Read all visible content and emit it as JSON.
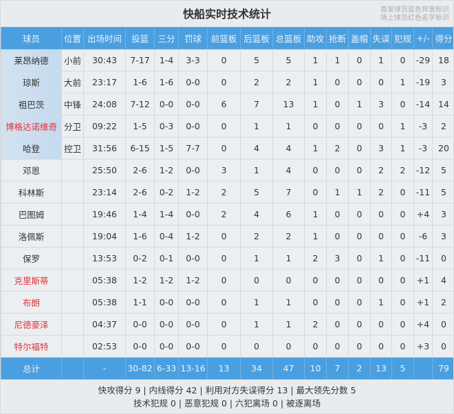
{
  "title": "快船实时技术统计",
  "legend": [
    "首发球员蓝色背景标识",
    "场上球员红色名字标识"
  ],
  "colors": {
    "header": "#4a9fe0",
    "starter_bg": "#c5daef",
    "on_court_name": "#e0343a"
  },
  "columns": [
    "球员",
    "位置",
    "出场时间",
    "投篮",
    "三分",
    "罚球",
    "前篮板",
    "后篮板",
    "总篮板",
    "助攻",
    "抢断",
    "盖帽",
    "失误",
    "犯规",
    "+/-",
    "得分"
  ],
  "players": [
    {
      "cells": [
        "莱昂纳德",
        "小前",
        "30:43",
        "7-17",
        "1-4",
        "3-3",
        "0",
        "5",
        "5",
        "1",
        "1",
        "0",
        "1",
        "0",
        "-29",
        "18"
      ],
      "starter": true,
      "on_court": false
    },
    {
      "cells": [
        "琼斯",
        "大前",
        "23:17",
        "1-6",
        "1-6",
        "0-0",
        "0",
        "2",
        "2",
        "1",
        "0",
        "0",
        "0",
        "1",
        "-19",
        "3"
      ],
      "starter": true,
      "on_court": false
    },
    {
      "cells": [
        "祖巴茨",
        "中锋",
        "24:08",
        "7-12",
        "0-0",
        "0-0",
        "6",
        "7",
        "13",
        "1",
        "0",
        "1",
        "3",
        "0",
        "-14",
        "14"
      ],
      "starter": true,
      "on_court": false
    },
    {
      "cells": [
        "博格达诺维奇",
        "分卫",
        "09:22",
        "1-5",
        "0-3",
        "0-0",
        "0",
        "1",
        "1",
        "0",
        "0",
        "0",
        "0",
        "1",
        "-3",
        "2"
      ],
      "starter": true,
      "on_court": true
    },
    {
      "cells": [
        "哈登",
        "控卫",
        "31:56",
        "6-15",
        "1-5",
        "7-7",
        "0",
        "4",
        "4",
        "1",
        "2",
        "0",
        "3",
        "1",
        "-3",
        "20"
      ],
      "starter": true,
      "on_court": false
    },
    {
      "cells": [
        "邓恩",
        "",
        "25:50",
        "2-6",
        "1-2",
        "0-0",
        "3",
        "1",
        "4",
        "0",
        "0",
        "0",
        "2",
        "2",
        "-12",
        "5"
      ],
      "starter": false,
      "on_court": false
    },
    {
      "cells": [
        "科林斯",
        "",
        "23:14",
        "2-6",
        "0-2",
        "1-2",
        "2",
        "5",
        "7",
        "0",
        "1",
        "1",
        "2",
        "0",
        "-11",
        "5"
      ],
      "starter": false,
      "on_court": false
    },
    {
      "cells": [
        "巴图姆",
        "",
        "19:46",
        "1-4",
        "1-4",
        "0-0",
        "2",
        "4",
        "6",
        "1",
        "0",
        "0",
        "0",
        "0",
        "+4",
        "3"
      ],
      "starter": false,
      "on_court": false
    },
    {
      "cells": [
        "洛佩斯",
        "",
        "19:04",
        "1-6",
        "0-4",
        "1-2",
        "0",
        "2",
        "2",
        "1",
        "0",
        "0",
        "0",
        "0",
        "-6",
        "3"
      ],
      "starter": false,
      "on_court": false
    },
    {
      "cells": [
        "保罗",
        "",
        "13:53",
        "0-2",
        "0-1",
        "0-0",
        "0",
        "1",
        "1",
        "2",
        "3",
        "0",
        "1",
        "0",
        "-11",
        "0"
      ],
      "starter": false,
      "on_court": false
    },
    {
      "cells": [
        "克里斯蒂",
        "",
        "05:38",
        "1-2",
        "1-2",
        "1-2",
        "0",
        "0",
        "0",
        "0",
        "0",
        "0",
        "0",
        "0",
        "+1",
        "4"
      ],
      "starter": false,
      "on_court": true
    },
    {
      "cells": [
        "布朗",
        "",
        "05:38",
        "1-1",
        "0-0",
        "0-0",
        "0",
        "1",
        "1",
        "0",
        "0",
        "0",
        "1",
        "0",
        "+1",
        "2"
      ],
      "starter": false,
      "on_court": true
    },
    {
      "cells": [
        "尼德豪泽",
        "",
        "04:37",
        "0-0",
        "0-0",
        "0-0",
        "0",
        "1",
        "1",
        "2",
        "0",
        "0",
        "0",
        "0",
        "+4",
        "0"
      ],
      "starter": false,
      "on_court": true
    },
    {
      "cells": [
        "特尔福特",
        "",
        "02:53",
        "0-0",
        "0-0",
        "0-0",
        "0",
        "0",
        "0",
        "0",
        "0",
        "0",
        "0",
        "0",
        "+3",
        "0"
      ],
      "starter": false,
      "on_court": true
    }
  ],
  "totals": [
    "总计",
    "",
    "-",
    "30-82",
    "6-33",
    "13-16",
    "13",
    "34",
    "47",
    "10",
    "7",
    "2",
    "13",
    "5",
    "",
    "79"
  ],
  "footer": {
    "line1": "快攻得分 9 | 内线得分 42 | 利用对方失误得分 13 | 最大领先分数 5",
    "line2": "技术犯规 0 | 恶意犯规 0 | 六犯离场 0 | 被逐离场"
  }
}
